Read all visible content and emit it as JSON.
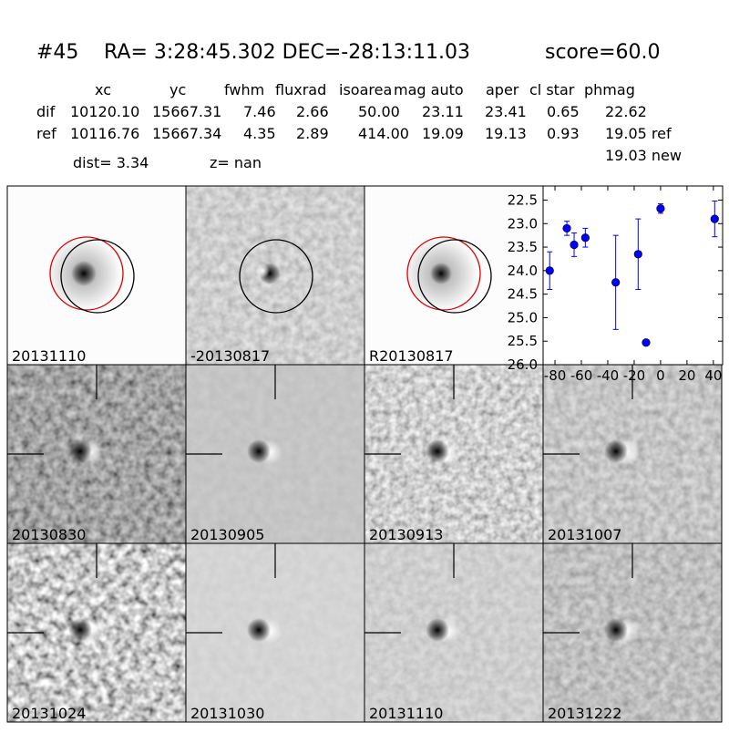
{
  "header": {
    "id": "#45",
    "coords": "RA= 3:28:45.302 DEC=-28:13:11.03",
    "score": "score=60.0"
  },
  "table": {
    "columns": [
      "xc",
      "yc",
      "fwhm",
      "fluxrad",
      "isoarea",
      "mag auto",
      "aper",
      "cl star",
      "phmag"
    ],
    "rows": [
      {
        "label": "dif",
        "cells": [
          "10120.10",
          "15667.31",
          "7.46",
          "2.66",
          "50.00",
          "23.11",
          "23.41",
          "0.65",
          "22.62"
        ]
      },
      {
        "label": "ref",
        "cells": [
          "10116.76",
          "15667.34",
          "4.35",
          "2.89",
          "414.00",
          "19.09",
          "19.13",
          "0.93",
          "19.05 ref"
        ]
      }
    ],
    "note": "19.03 new"
  },
  "dist": "dist=  3.34",
  "z": "z=   nan",
  "panels": [
    {
      "label": "20131110"
    },
    {
      "label": "-20130817"
    },
    {
      "label": "R20130817"
    },
    {
      "label": "20130830"
    },
    {
      "label": "20130905"
    },
    {
      "label": "20130913"
    },
    {
      "label": "20131007"
    },
    {
      "label": "20131024"
    },
    {
      "label": "20131030"
    },
    {
      "label": "20131110",
      "color": "#ff0000"
    },
    {
      "label": "20131222"
    }
  ],
  "chart_data": {
    "type": "errorbar",
    "x": [
      -84,
      -71,
      -65.5,
      -57,
      -34,
      -17,
      -11,
      0,
      41
    ],
    "series": [
      {
        "color": "#0000ff",
        "values": [
          24.0,
          23.1,
          23.45,
          23.3,
          24.25,
          23.65,
          25.53,
          22.68,
          22.9
        ],
        "errors": [
          0.4,
          0.15,
          0.25,
          0.2,
          1.0,
          0.75,
          0.05,
          0.1,
          0.38
        ]
      }
    ],
    "xlim": [
      -89,
      47
    ],
    "ylim": [
      26.0,
      22.2
    ],
    "y_inverted": true,
    "xticks": [
      -80,
      -60,
      -40,
      -20,
      0,
      20,
      40
    ],
    "yticks": [
      {
        "value": 22.5,
        "label": "22.5"
      },
      {
        "value": 23.0,
        "label": "23.0"
      },
      {
        "value": 23.5,
        "label": "23.5"
      },
      {
        "value": 24.0,
        "label": "24.0"
      },
      {
        "value": 24.5,
        "label": "24.5"
      },
      {
        "value": 25.0,
        "label": "25.0"
      },
      {
        "value": 25.5,
        "label": "25.5"
      },
      {
        "value": 26.0,
        "label": "26.0"
      }
    ]
  }
}
